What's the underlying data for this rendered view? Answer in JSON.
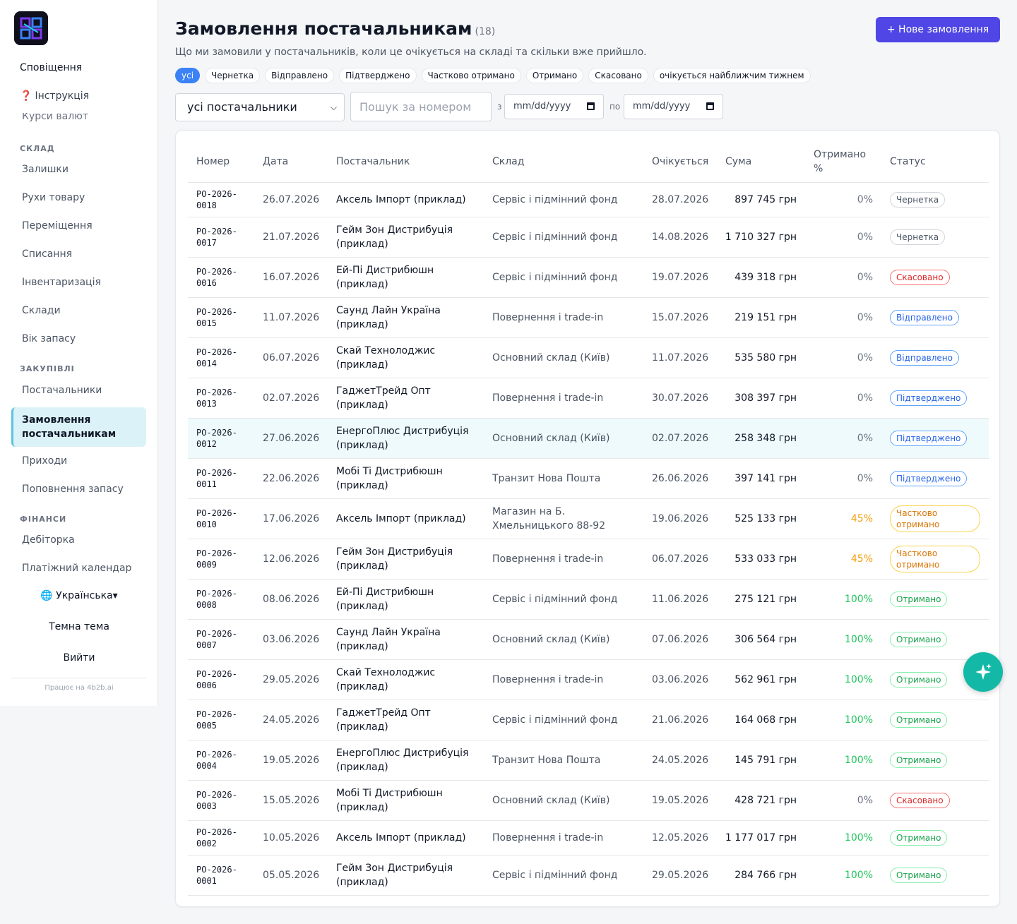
{
  "sidebar": {
    "notifications": "Сповіщення",
    "instruction_mark": "❓",
    "instruction": "Інструкція",
    "currency": "Курси валют",
    "sections": {
      "warehouse": "СКЛАД",
      "purchases": "ЗАКУПІВЛІ",
      "finance": "ФІНАНСИ"
    },
    "warehouse_items": [
      "Залишки",
      "Рухи товару",
      "Переміщення",
      "Списання",
      "Інвентаризація",
      "Склади",
      "Вік запасу"
    ],
    "purchase_items": [
      "Постачальники",
      "Замовлення постачальникам",
      "Приходи",
      "Поповнення запасу"
    ],
    "finance_items": [
      "Дебіторка",
      "Платіжний календар"
    ],
    "language": "🌐 Українська▾",
    "theme": "Темна тема",
    "logout": "Вийти",
    "powered": "Працює на 4b2b.ai"
  },
  "header": {
    "title": "Замовлення постачальникам",
    "count": "(18)",
    "new_button": "+ Нове замовлення",
    "subtitle": "Що ми замовили у постачальників, коли це очікується на складі та скільки вже прийшло."
  },
  "chips": [
    "усі",
    "Чернетка",
    "Відправлено",
    "Підтверджено",
    "Частково отримано",
    "Отримано",
    "Скасовано",
    "очікується найближчим тижнем"
  ],
  "filters": {
    "supplier": "усі постачальники",
    "search_placeholder": "Пошук за номером",
    "from_label": "з",
    "to_label": "по",
    "date_placeholder": "mm/dd/yyyy"
  },
  "table": {
    "headers": {
      "number": "Номер",
      "date": "Дата",
      "supplier": "Постачальник",
      "warehouse": "Склад",
      "expected": "Очікується",
      "sum": "Сума",
      "received": "Отримано %",
      "status": "Статус"
    },
    "rows": [
      {
        "number": "PO-2026-0018",
        "date": "26.07.2026",
        "supplier": "Аксель Імпорт (приклад)",
        "warehouse": "Сервіс і підмінний фонд",
        "expected": "28.07.2026",
        "sum": "897 745 грн",
        "pct": "0%",
        "status": "Чернетка",
        "kind": "draft"
      },
      {
        "number": "PO-2026-0017",
        "date": "21.07.2026",
        "supplier": "Гейм Зон Дистрибуція (приклад)",
        "warehouse": "Сервіс і підмінний фонд",
        "expected": "14.08.2026",
        "sum": "1 710 327 грн",
        "pct": "0%",
        "status": "Чернетка",
        "kind": "draft"
      },
      {
        "number": "PO-2026-0016",
        "date": "16.07.2026",
        "supplier": "Ей-Пі Дистрибюшн (приклад)",
        "warehouse": "Сервіс і підмінний фонд",
        "expected": "19.07.2026",
        "sum": "439 318 грн",
        "pct": "0%",
        "status": "Скасовано",
        "kind": "cancel"
      },
      {
        "number": "PO-2026-0015",
        "date": "11.07.2026",
        "supplier": "Саунд Лайн Україна (приклад)",
        "warehouse": "Повернення і trade-in",
        "expected": "15.07.2026",
        "sum": "219 151 грн",
        "pct": "0%",
        "status": "Відправлено",
        "kind": "sent"
      },
      {
        "number": "PO-2026-0014",
        "date": "06.07.2026",
        "supplier": "Скай Технолоджис (приклад)",
        "warehouse": "Основний склад (Київ)",
        "expected": "11.07.2026",
        "sum": "535 580 грн",
        "pct": "0%",
        "status": "Відправлено",
        "kind": "sent"
      },
      {
        "number": "PO-2026-0013",
        "date": "02.07.2026",
        "supplier": "ГаджетТрейд Опт (приклад)",
        "warehouse": "Повернення і trade-in",
        "expected": "30.07.2026",
        "sum": "308 397 грн",
        "pct": "0%",
        "status": "Підтверджено",
        "kind": "conf"
      },
      {
        "number": "PO-2026-0012",
        "date": "27.06.2026",
        "supplier": "ЕнергоПлюс Дистрибуція (приклад)",
        "warehouse": "Основний склад (Київ)",
        "expected": "02.07.2026",
        "sum": "258 348 грн",
        "pct": "0%",
        "status": "Підтверджено",
        "kind": "conf"
      },
      {
        "number": "PO-2026-0011",
        "date": "22.06.2026",
        "supplier": "Мобі Ті Дистрибюшн (приклад)",
        "warehouse": "Транзит Нова Пошта",
        "expected": "26.06.2026",
        "sum": "397 141 грн",
        "pct": "0%",
        "status": "Підтверджено",
        "kind": "conf"
      },
      {
        "number": "PO-2026-0010",
        "date": "17.06.2026",
        "supplier": "Аксель Імпорт (приклад)",
        "warehouse": "Магазин на Б. Хмельницького 88-92",
        "expected": "19.06.2026",
        "sum": "525 133 грн",
        "pct": "45%",
        "status": "Частково отримано",
        "kind": "part"
      },
      {
        "number": "PO-2026-0009",
        "date": "12.06.2026",
        "supplier": "Гейм Зон Дистрибуція (приклад)",
        "warehouse": "Повернення і trade-in",
        "expected": "06.07.2026",
        "sum": "533 033 грн",
        "pct": "45%",
        "status": "Частково отримано",
        "kind": "part"
      },
      {
        "number": "PO-2026-0008",
        "date": "08.06.2026",
        "supplier": "Ей-Пі Дистрибюшн (приклад)",
        "warehouse": "Сервіс і підмінний фонд",
        "expected": "11.06.2026",
        "sum": "275 121 грн",
        "pct": "100%",
        "status": "Отримано",
        "kind": "recv"
      },
      {
        "number": "PO-2026-0007",
        "date": "03.06.2026",
        "supplier": "Саунд Лайн Україна (приклад)",
        "warehouse": "Основний склад (Київ)",
        "expected": "07.06.2026",
        "sum": "306 564 грн",
        "pct": "100%",
        "status": "Отримано",
        "kind": "recv"
      },
      {
        "number": "PO-2026-0006",
        "date": "29.05.2026",
        "supplier": "Скай Технолоджис (приклад)",
        "warehouse": "Повернення і trade-in",
        "expected": "03.06.2026",
        "sum": "562 961 грн",
        "pct": "100%",
        "status": "Отримано",
        "kind": "recv"
      },
      {
        "number": "PO-2026-0005",
        "date": "24.05.2026",
        "supplier": "ГаджетТрейд Опт (приклад)",
        "warehouse": "Сервіс і підмінний фонд",
        "expected": "21.06.2026",
        "sum": "164 068 грн",
        "pct": "100%",
        "status": "Отримано",
        "kind": "recv"
      },
      {
        "number": "PO-2026-0004",
        "date": "19.05.2026",
        "supplier": "ЕнергоПлюс Дистрибуція (приклад)",
        "warehouse": "Транзит Нова Пошта",
        "expected": "24.05.2026",
        "sum": "145 791 грн",
        "pct": "100%",
        "status": "Отримано",
        "kind": "recv"
      },
      {
        "number": "PO-2026-0003",
        "date": "15.05.2026",
        "supplier": "Мобі Ті Дистрибюшн (приклад)",
        "warehouse": "Основний склад (Київ)",
        "expected": "19.05.2026",
        "sum": "428 721 грн",
        "pct": "0%",
        "status": "Скасовано",
        "kind": "cancel"
      },
      {
        "number": "PO-2026-0002",
        "date": "10.05.2026",
        "supplier": "Аксель Імпорт (приклад)",
        "warehouse": "Повернення і trade-in",
        "expected": "12.05.2026",
        "sum": "1 177 017 грн",
        "pct": "100%",
        "status": "Отримано",
        "kind": "recv"
      },
      {
        "number": "PO-2026-0001",
        "date": "05.05.2026",
        "supplier": "Гейм Зон Дистрибуція (приклад)",
        "warehouse": "Сервіс і підмінний фонд",
        "expected": "29.05.2026",
        "sum": "284 766 грн",
        "pct": "100%",
        "status": "Отримано",
        "kind": "recv"
      }
    ]
  },
  "icons": {
    "fab": "sparkles-icon"
  },
  "colors": {
    "accent": "#4f46e5",
    "active_nav": "#dbf2f8",
    "fab": "#14b8a6"
  }
}
